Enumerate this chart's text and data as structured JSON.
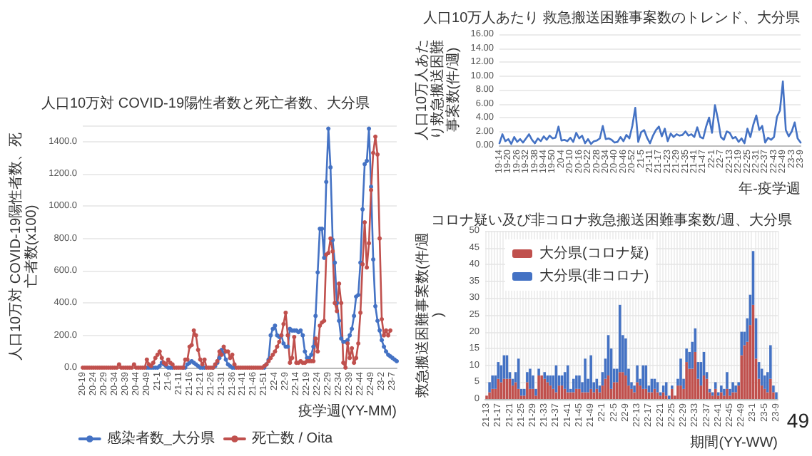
{
  "chart_data": [
    {
      "type": "line",
      "title": "人口10万対 COVID-19陽性者数と死亡者数、大分県",
      "xlabel": "疫学週(YY-MM)",
      "ylabel": "人口10万対 COVID-19陽性者数、死亡者数(x100)",
      "categories": [
        "20-19",
        null,
        null,
        null,
        null,
        "20-24",
        null,
        null,
        null,
        null,
        "20-29",
        null,
        null,
        null,
        null,
        "20-34",
        null,
        null,
        null,
        null,
        "20-39",
        null,
        null,
        null,
        null,
        "20-44",
        null,
        null,
        null,
        null,
        "20-49",
        null,
        null,
        null,
        null,
        "21-1",
        null,
        null,
        null,
        null,
        "21-6",
        null,
        null,
        null,
        null,
        "21-11",
        null,
        null,
        null,
        null,
        "21-16",
        null,
        null,
        null,
        null,
        "21-21",
        null,
        null,
        null,
        null,
        "21-26",
        null,
        null,
        null,
        null,
        "21-31",
        null,
        null,
        null,
        null,
        "21-36",
        null,
        null,
        null,
        null,
        "21-41",
        null,
        null,
        null,
        null,
        "21-46",
        null,
        null,
        null,
        null,
        "21-51",
        null,
        null,
        null,
        null,
        "22-4",
        null,
        null,
        null,
        null,
        "22-9",
        null,
        null,
        null,
        null,
        "22-14",
        null,
        null,
        null,
        null,
        "22-19",
        null,
        null,
        null,
        null,
        "22-24",
        null,
        null,
        null,
        null,
        "22-29",
        null,
        null,
        null,
        null,
        "22-34",
        null,
        null,
        null,
        null,
        "22-39",
        null,
        null,
        null,
        null,
        "22-44",
        null,
        null,
        null,
        null,
        "22-49",
        null,
        null,
        null,
        null,
        "23-2",
        null,
        null,
        null,
        null,
        "23-7",
        null,
        null
      ],
      "series": [
        {
          "name": "感染者数_大分県",
          "color": "#4472c4",
          "values": [
            null,
            null,
            null,
            null,
            null,
            null,
            null,
            null,
            null,
            null,
            null,
            null,
            null,
            null,
            null,
            null,
            null,
            null,
            null,
            null,
            null,
            null,
            null,
            null,
            null,
            null,
            null,
            null,
            null,
            null,
            0,
            0,
            0,
            0,
            0,
            0,
            10,
            30,
            20,
            10,
            0,
            0,
            0,
            null,
            null,
            null,
            null,
            0,
            0,
            20,
            30,
            40,
            30,
            20,
            10,
            0,
            0,
            0,
            null,
            null,
            null,
            0,
            10,
            30,
            60,
            110,
            90,
            50,
            20,
            10,
            0,
            0,
            null,
            null,
            null,
            null,
            null,
            null,
            null,
            null,
            null,
            null,
            null,
            null,
            null,
            0,
            20,
            50,
            200,
            240,
            260,
            200,
            190,
            200,
            150,
            130,
            130,
            240,
            230,
            230,
            230,
            220,
            230,
            200,
            100,
            60,
            60,
            80,
            130,
            320,
            590,
            860,
            860,
            680,
            1150,
            1480,
            1240,
            790,
            650,
            400,
            290,
            180,
            160,
            160,
            170,
            200,
            240,
            320,
            440,
            450,
            650,
            980,
            1260,
            1280,
            1480,
            1120,
            670,
            380,
            290,
            230,
            170,
            130,
            100,
            80,
            70,
            60,
            50,
            40
          ]
        },
        {
          "name": "死亡数 / Oita",
          "color": "#c0504d",
          "values": [
            0,
            0,
            0,
            0,
            0,
            0,
            0,
            0,
            0,
            0,
            0,
            0,
            0,
            0,
            0,
            0,
            0,
            20,
            0,
            0,
            0,
            0,
            0,
            0,
            20,
            0,
            0,
            0,
            0,
            0,
            50,
            20,
            10,
            30,
            60,
            80,
            100,
            60,
            30,
            20,
            50,
            30,
            20,
            0,
            0,
            0,
            0,
            0,
            50,
            50,
            130,
            140,
            230,
            200,
            110,
            50,
            20,
            50,
            0,
            0,
            0,
            0,
            20,
            40,
            100,
            80,
            130,
            100,
            100,
            60,
            80,
            20,
            0,
            0,
            0,
            0,
            0,
            0,
            0,
            0,
            0,
            0,
            0,
            0,
            0,
            10,
            20,
            40,
            60,
            80,
            100,
            130,
            160,
            200,
            270,
            340,
            200,
            30,
            60,
            190,
            30,
            30,
            40,
            30,
            30,
            40,
            40,
            40,
            40,
            180,
            100,
            260,
            280,
            290,
            700,
            710,
            800,
            720,
            400,
            350,
            520,
            400,
            30,
            0,
            150,
            60,
            120,
            30,
            60,
            150,
            340,
            640,
            900,
            620,
            770,
            1100,
            1330,
            1430,
            1320,
            800,
            300,
            200,
            230,
            200,
            230,
            null,
            null,
            null
          ]
        }
      ],
      "ylim": [
        0,
        1500
      ],
      "yticks": [
        {
          "value": 0,
          "label": "0.0"
        },
        {
          "value": 200,
          "label": "200.0"
        },
        {
          "value": 400,
          "label": "400.0"
        },
        {
          "value": 600,
          "label": "600.0"
        },
        {
          "value": 800,
          "label": "800.0"
        },
        {
          "value": 1000,
          "label": "1000.0"
        },
        {
          "value": 1200,
          "label": "1200.0"
        },
        {
          "value": 1400,
          "label": "1400.0"
        }
      ],
      "grid": "y",
      "legend": "bottom",
      "marker": "circle"
    },
    {
      "type": "line",
      "title": "人口10万人あたり 救急搬送困難事案数のトレンド、大分県",
      "xlabel": "年-疫学週",
      "ylabel": "人口10万人あたり救急搬送困難事案数(件/週)",
      "categories": [
        "19-14",
        null,
        null,
        "19-20",
        null,
        null,
        "19-26",
        null,
        null,
        "19-32",
        null,
        null,
        "19-38",
        null,
        null,
        "19-44",
        null,
        null,
        "19-50",
        null,
        null,
        "20-4",
        null,
        null,
        "20-10",
        null,
        null,
        "20-16",
        null,
        null,
        "20-22",
        null,
        null,
        "20-28",
        null,
        null,
        "20-34",
        null,
        null,
        "20-40",
        null,
        null,
        "20-46",
        null,
        null,
        "20-52",
        null,
        null,
        "21-5",
        null,
        null,
        "21-11",
        null,
        null,
        "21-17",
        null,
        null,
        "21-23",
        null,
        null,
        "21-29",
        null,
        null,
        "21-35",
        null,
        null,
        "21-41",
        null,
        null,
        "21-47",
        null,
        null,
        "22-1",
        null,
        null,
        "22-7",
        null,
        null,
        "22-13",
        null,
        null,
        "22-19",
        null,
        null,
        "22-25",
        null,
        null,
        "22-31",
        null,
        null,
        "22-37",
        null,
        null,
        "22-43",
        null,
        null,
        "22-49",
        null,
        null,
        "23-3",
        null,
        null,
        "23-9"
      ],
      "series": [
        {
          "color": "#4472c4",
          "values": [
            0.3,
            1.6,
            0.6,
            0.9,
            0.2,
            1.2,
            0.5,
            0.9,
            0.4,
            1.0,
            1.6,
            0.8,
            0.3,
            1.0,
            0.6,
            1.3,
            0.8,
            1.4,
            1.0,
            1.1,
            2.7,
            0.7,
            0.8,
            0.6,
            1.1,
            0.5,
            1.8,
            1.0,
            1.4,
            0.3,
            0.9,
            0.2,
            0.6,
            0.7,
            1.0,
            2.8,
            0.9,
            1.0,
            0.8,
            0.4,
            0.5,
            1.2,
            0.6,
            1.5,
            1.0,
            2.8,
            5.4,
            0.5,
            1.9,
            2.2,
            1.1,
            0.3,
            1.4,
            2.2,
            2.7,
            1.3,
            2.4,
            0.6,
            1.7,
            1.2,
            1.6,
            1.4,
            1.5,
            2.0,
            1.4,
            1.6,
            1.2,
            2.6,
            1.2,
            1.0,
            2.7,
            4.0,
            1.8,
            5.8,
            3.8,
            1.2,
            0.8,
            2.0,
            1.8,
            1.0,
            1.2,
            0.5,
            1.0,
            0.3,
            2.4,
            1.2,
            3.0,
            4.3,
            2.2,
            2.8,
            0.4,
            1.1,
            0.8,
            1.2,
            4.1,
            5.0,
            9.2,
            2.2,
            1.3,
            2.0,
            3.3,
            1.0,
            0.4
          ]
        }
      ],
      "ylim": [
        0,
        16
      ],
      "yticks": [
        {
          "value": 0,
          "label": "0.00"
        },
        {
          "value": 2,
          "label": "2.00"
        },
        {
          "value": 4,
          "label": "4.00"
        },
        {
          "value": 6,
          "label": "6.00"
        },
        {
          "value": 8,
          "label": "8.00"
        },
        {
          "value": 10,
          "label": "10.00"
        },
        {
          "value": 12,
          "label": "12.00"
        },
        {
          "value": 14,
          "label": "14.00"
        },
        {
          "value": 16,
          "label": "16.00"
        }
      ],
      "grid": "y"
    },
    {
      "type": "bar",
      "stacked": true,
      "title": "コロナ疑い及び非コロナ救急搬送困難事案数/週、大分県",
      "xlabel": "期間(YY-WW)",
      "ylabel": "救急搬送困難事案数(件/週)",
      "categories": [
        "21-13",
        null,
        null,
        null,
        "21-17",
        null,
        null,
        null,
        "21-21",
        null,
        null,
        null,
        "21-25",
        null,
        null,
        null,
        "21-29",
        null,
        null,
        null,
        "21-33",
        null,
        null,
        null,
        "21-37",
        null,
        null,
        null,
        "21-41",
        null,
        null,
        null,
        "21-45",
        null,
        null,
        null,
        "21-49",
        null,
        null,
        null,
        "22-1",
        null,
        null,
        null,
        "22-5",
        null,
        null,
        null,
        "22-9",
        null,
        null,
        null,
        "22-13",
        null,
        null,
        null,
        "22-17",
        null,
        null,
        null,
        "22-21",
        null,
        null,
        null,
        "22-25",
        null,
        null,
        null,
        "22-29",
        null,
        null,
        null,
        "22-33",
        null,
        null,
        null,
        "22-37",
        null,
        null,
        null,
        "22-41",
        null,
        null,
        null,
        "22-45",
        null,
        null,
        null,
        "22-49",
        null,
        null,
        null,
        "23-1",
        null,
        null,
        null,
        "23-5",
        null,
        null,
        null,
        "23-9"
      ],
      "series": [
        {
          "name": "大分県(コロナ疑)",
          "color": "#c0504d",
          "values": [
            1,
            2,
            3,
            3,
            6,
            5,
            6,
            6,
            6,
            4,
            5,
            3,
            1,
            1,
            5,
            3,
            3,
            1,
            7,
            7,
            6,
            5,
            4,
            3,
            2,
            4,
            4,
            3,
            2,
            2,
            2,
            3,
            3,
            2,
            2,
            2,
            3,
            2,
            3,
            2,
            4,
            6,
            7,
            3,
            5,
            5,
            8,
            8,
            7,
            4,
            3,
            2,
            5,
            4,
            3,
            3,
            2,
            2,
            3,
            2,
            1,
            2,
            1,
            0,
            3,
            1,
            4,
            4,
            3,
            11,
            9,
            9,
            14,
            6,
            4,
            7,
            6,
            2,
            1,
            3,
            1,
            2,
            1,
            3,
            1,
            2,
            2,
            4,
            13,
            16,
            17,
            22,
            28,
            12,
            6,
            4,
            3,
            2,
            6,
            2,
            0
          ]
        },
        {
          "name": "大分県(非コロナ)",
          "color": "#4472c4",
          "values": [
            0,
            3,
            4,
            4,
            5,
            5,
            7,
            7,
            2,
            2,
            3,
            9,
            2,
            2,
            3,
            6,
            4,
            2,
            2,
            0,
            2,
            2,
            3,
            4,
            8,
            3,
            3,
            5,
            8,
            1,
            4,
            4,
            4,
            3,
            10,
            4,
            10,
            3,
            3,
            2,
            4,
            6,
            12,
            12,
            4,
            4,
            20,
            11,
            11,
            5,
            2,
            2,
            5,
            2,
            7,
            7,
            2,
            4,
            3,
            3,
            1,
            2,
            4,
            1,
            1,
            0,
            2,
            8,
            3,
            4,
            5,
            8,
            7,
            5,
            7,
            7,
            2,
            1,
            1,
            2,
            1,
            2,
            2,
            5,
            2,
            3,
            2,
            1,
            7,
            4,
            7,
            9,
            16,
            12,
            5,
            5,
            4,
            6,
            10,
            2,
            2
          ]
        }
      ],
      "ylim": [
        0,
        50
      ],
      "yticks": [
        0,
        5,
        10,
        15,
        20,
        25,
        30,
        35,
        40,
        45,
        50
      ],
      "grid": true,
      "legend": "top left",
      "annotations": [
        "49"
      ]
    }
  ]
}
